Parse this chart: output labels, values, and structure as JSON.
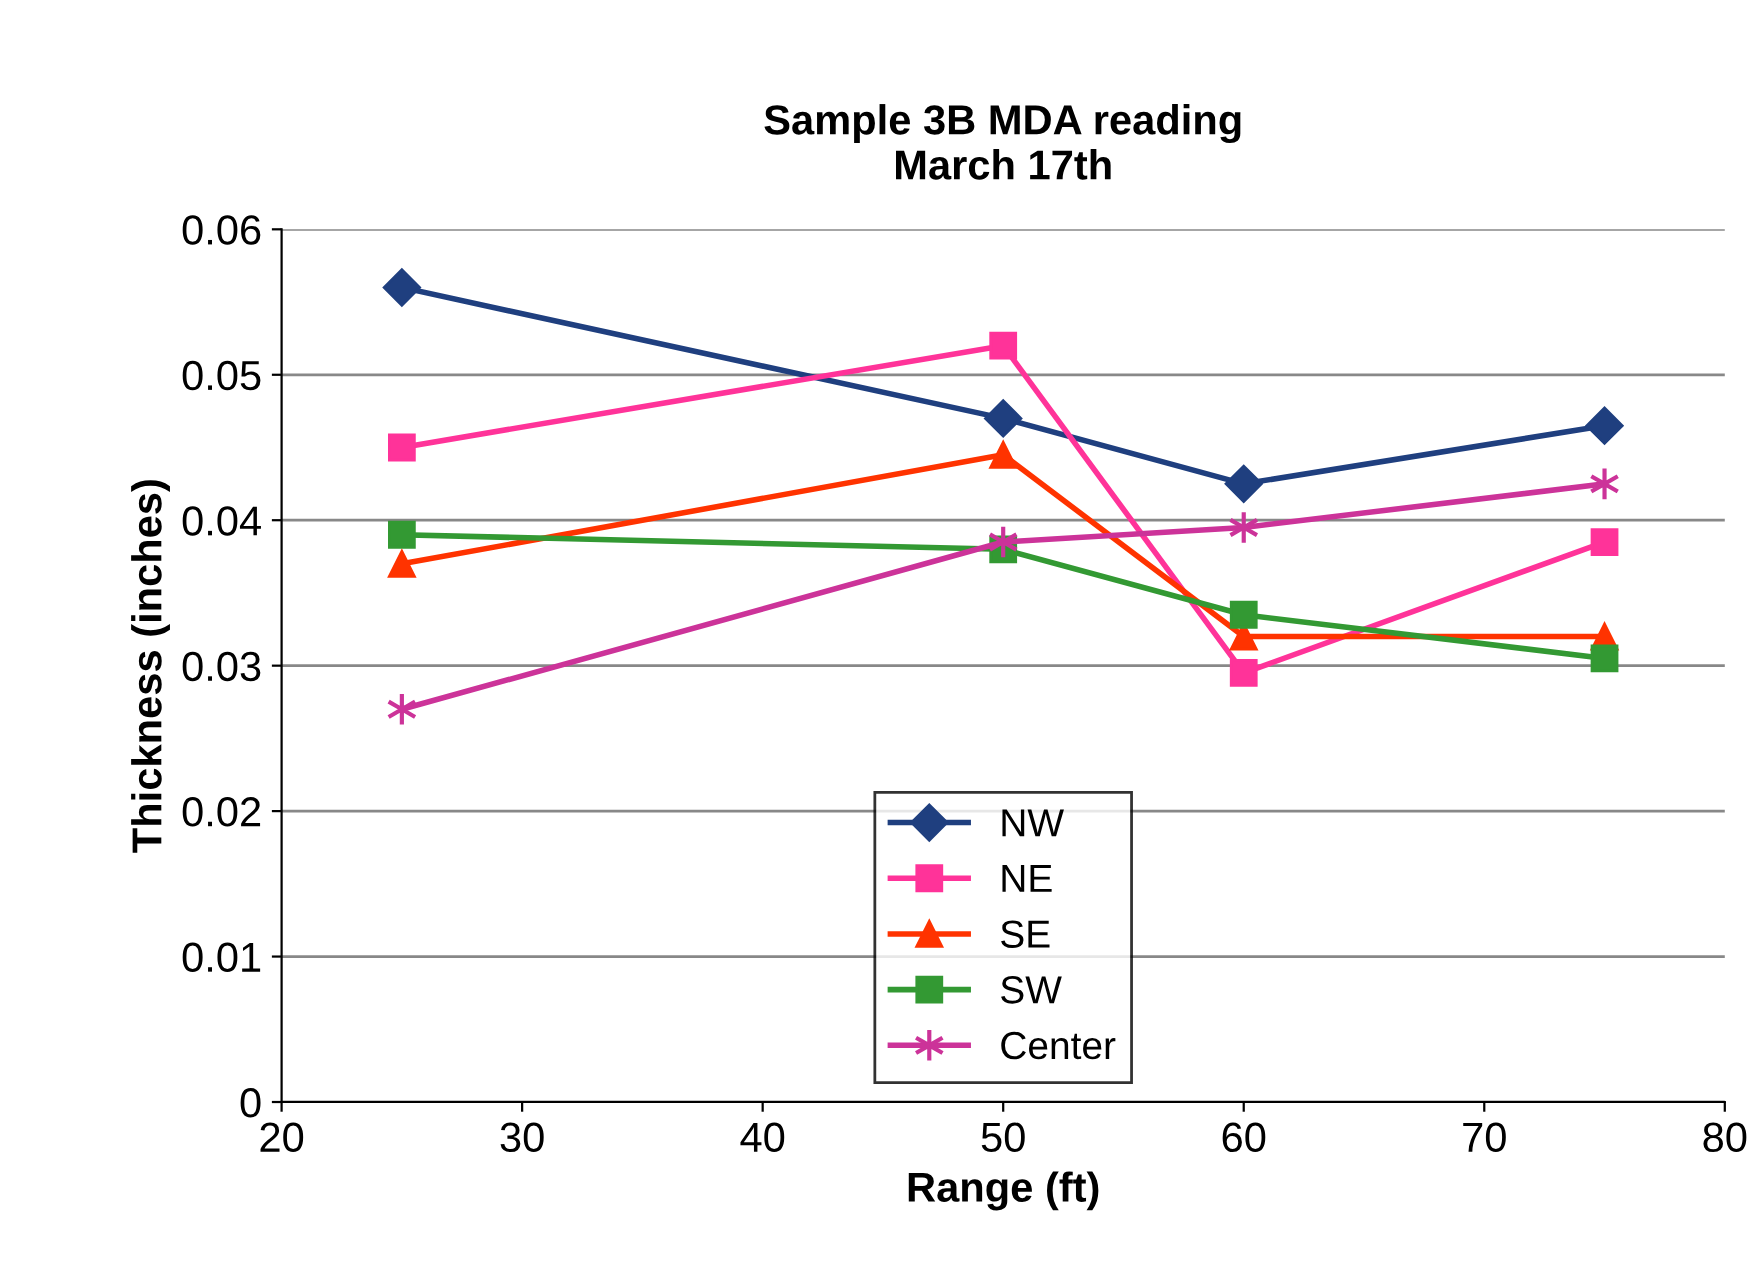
{
  "chart_data": {
    "type": "line",
    "title": "Sample 3B MDA reading\nMarch 17th",
    "xlabel": "Range (ft)",
    "ylabel": "Thickness (inches)",
    "x": [
      25,
      50,
      60,
      75
    ],
    "series": [
      {
        "name": "NW",
        "color": "#1f3f7f",
        "marker": "diamond",
        "values": [
          0.056,
          0.047,
          0.0425,
          0.0465
        ]
      },
      {
        "name": "NE",
        "color": "#ff3399",
        "marker": "square",
        "values": [
          0.045,
          0.052,
          0.0295,
          0.0385
        ]
      },
      {
        "name": "SE",
        "color": "#ff3300",
        "marker": "triangle",
        "values": [
          0.037,
          0.0445,
          0.032,
          0.032
        ]
      },
      {
        "name": "SW",
        "color": "#339933",
        "marker": "square",
        "values": [
          0.039,
          0.038,
          0.0335,
          0.0305
        ]
      },
      {
        "name": "Center",
        "color": "#cc3399",
        "marker": "cross",
        "values": [
          0.027,
          0.0385,
          0.0395,
          0.0425
        ]
      }
    ],
    "xlim": [
      20,
      80
    ],
    "xticks": [
      20,
      30,
      40,
      50,
      60,
      70,
      80
    ],
    "ylim": [
      0,
      0.06
    ],
    "yticks": [
      0,
      0.01,
      0.02,
      0.03,
      0.04,
      0.05,
      0.06
    ],
    "grid": "y",
    "legend": "bottom",
    "line_style": "solid"
  }
}
